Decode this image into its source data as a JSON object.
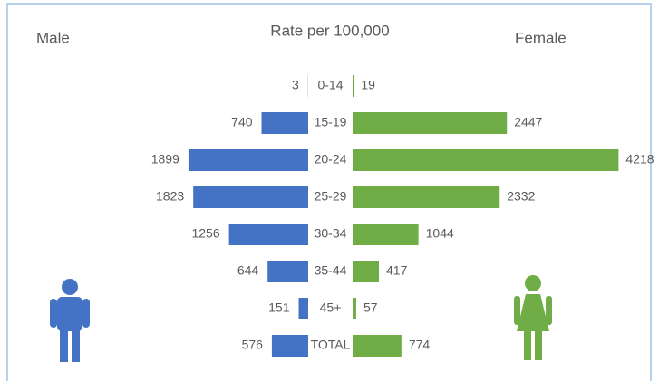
{
  "chart_data": {
    "type": "butterfly",
    "title": "Rate per 100,000",
    "categories": [
      "0-14",
      "15-19",
      "20-24",
      "25-29",
      "30-34",
      "35-44",
      "45+",
      "TOTAL"
    ],
    "series": [
      {
        "name": "Male",
        "color": "#4472c4",
        "values": [
          3,
          740,
          1899,
          1823,
          1256,
          644,
          151,
          576
        ]
      },
      {
        "name": "Female",
        "color": "#70ad47",
        "values": [
          19,
          2447,
          4218,
          2332,
          1044,
          417,
          57,
          774
        ]
      }
    ],
    "xlim": [
      0,
      4600
    ]
  }
}
